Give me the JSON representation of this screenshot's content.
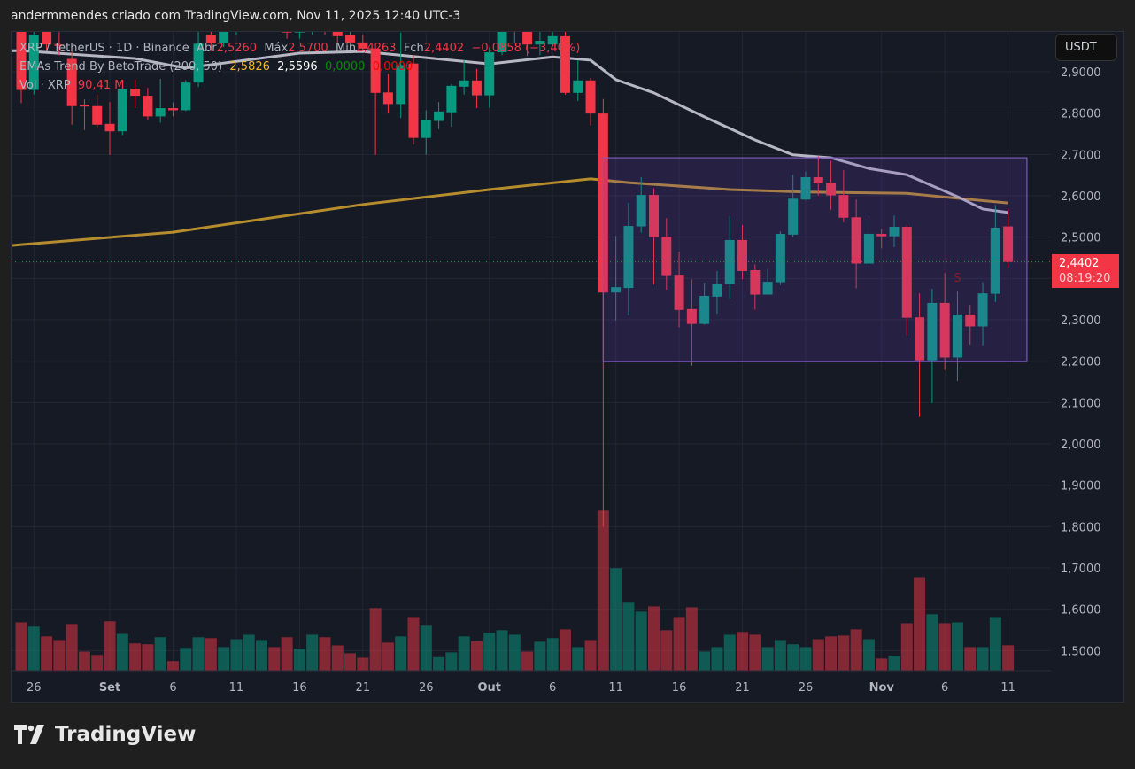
{
  "header": {
    "attribution": "andermmendes criado com TradingView.com, Nov 11, 2025 12:40 UTC-3"
  },
  "legend": {
    "symbol": "XRP / TetherUS · 1D · Binance",
    "open_label": "Abr",
    "open": "2,5260",
    "high_label": "Máx",
    "high": "2,5700",
    "low_label": "Mín",
    "low": "2,4263",
    "close_label": "Fch",
    "close": "2,4402",
    "change": "−0,0858 (−3,40%)",
    "indicator": "EMAs Trend By BetoTrade (200, 50)",
    "ema200": "2,5826",
    "ema50": "2,5596",
    "ind_v3": "0,0000",
    "ind_v4": "0,0000",
    "volume_label": "Vol · XRP",
    "volume": "90,41 M"
  },
  "price_axis": {
    "currency_button": "USDT",
    "ticks": [
      "2,9000",
      "2,8000",
      "2,7000",
      "2,6000",
      "2,5000",
      "2,3000",
      "2,2000",
      "2,1000",
      "2,0000",
      "1,9000",
      "1,8000",
      "1,7000",
      "1,6000",
      "1,5000"
    ],
    "current_price": "2,4402",
    "countdown": "08:19:20"
  },
  "time_axis": {
    "labels": [
      {
        "text": "26",
        "date": "2025-08-26"
      },
      {
        "text": "Set",
        "date": "2025-09-01"
      },
      {
        "text": "6",
        "date": "2025-09-06"
      },
      {
        "text": "11",
        "date": "2025-09-11"
      },
      {
        "text": "16",
        "date": "2025-09-16"
      },
      {
        "text": "21",
        "date": "2025-09-21"
      },
      {
        "text": "26",
        "date": "2025-09-26"
      },
      {
        "text": "Out",
        "date": "2025-10-01"
      },
      {
        "text": "6",
        "date": "2025-10-06"
      },
      {
        "text": "11",
        "date": "2025-10-11"
      },
      {
        "text": "16",
        "date": "2025-10-16"
      },
      {
        "text": "21",
        "date": "2025-10-21"
      },
      {
        "text": "26",
        "date": "2025-10-26"
      },
      {
        "text": "Nov",
        "date": "2025-11-01"
      },
      {
        "text": "6",
        "date": "2025-11-06"
      },
      {
        "text": "11",
        "date": "2025-11-11"
      }
    ]
  },
  "colors": {
    "up": "#089981",
    "down": "#f23645",
    "ema200": "#c8992f",
    "ema50": "#c9c9d6",
    "box": "#7e57c2",
    "background": "#161a25"
  },
  "chart_data": {
    "type": "candlestick",
    "symbol": "XRP/USDT",
    "interval": "1D",
    "ylim": [
      1.45,
      3.0
    ],
    "grid": true,
    "columns": [
      "date",
      "open",
      "high",
      "low",
      "close",
      "volume_M"
    ],
    "candles": [
      [
        "2025-08-25",
        3.02,
        3.05,
        2.824,
        2.856,
        172
      ],
      [
        "2025-08-26",
        2.856,
        3.02,
        2.845,
        2.99,
        157
      ],
      [
        "2025-08-27",
        2.998,
        3.01,
        2.95,
        2.966,
        122
      ],
      [
        "2025-08-28",
        2.966,
        2.998,
        2.94,
        2.964,
        109
      ],
      [
        "2025-08-29",
        2.931,
        2.95,
        2.772,
        2.817,
        166
      ],
      [
        "2025-08-30",
        2.82,
        2.833,
        2.759,
        2.816,
        68
      ],
      [
        "2025-08-31",
        2.817,
        2.845,
        2.765,
        2.772,
        56
      ],
      [
        "2025-09-01",
        2.774,
        2.827,
        2.699,
        2.756,
        176
      ],
      [
        "2025-09-02",
        2.756,
        2.862,
        2.747,
        2.859,
        131
      ],
      [
        "2025-09-03",
        2.859,
        2.881,
        2.812,
        2.842,
        97
      ],
      [
        "2025-09-04",
        2.842,
        2.861,
        2.783,
        2.792,
        94
      ],
      [
        "2025-09-05",
        2.792,
        2.883,
        2.777,
        2.812,
        119
      ],
      [
        "2025-09-06",
        2.812,
        2.826,
        2.792,
        2.807,
        34
      ],
      [
        "2025-09-07",
        2.807,
        2.88,
        2.805,
        2.874,
        81
      ],
      [
        "2025-09-08",
        2.874,
        2.998,
        2.863,
        2.968,
        119
      ],
      [
        "2025-09-09",
        2.99,
        3.03,
        2.95,
        2.97,
        116
      ],
      [
        "2025-09-10",
        2.97,
        3.04,
        2.96,
        3.02,
        84
      ],
      [
        "2025-09-11",
        3.02,
        3.08,
        2.99,
        3.06,
        112
      ],
      [
        "2025-09-12",
        3.06,
        3.12,
        3.03,
        3.1,
        128
      ],
      [
        "2025-09-13",
        3.1,
        3.15,
        3.07,
        3.12,
        109
      ],
      [
        "2025-09-14",
        3.12,
        3.13,
        3.05,
        3.08,
        84
      ],
      [
        "2025-09-15",
        3.08,
        3.09,
        2.98,
        2.995,
        119
      ],
      [
        "2025-09-16",
        2.995,
        3.03,
        2.98,
        3.02,
        78
      ],
      [
        "2025-09-17",
        3.02,
        3.06,
        2.99,
        3.04,
        128
      ],
      [
        "2025-09-18",
        3.04,
        3.07,
        2.99,
        3.0,
        119
      ],
      [
        "2025-09-19",
        3.0,
        3.03,
        2.97,
        2.986,
        90
      ],
      [
        "2025-09-20",
        2.988,
        3.0,
        2.965,
        2.971,
        62
      ],
      [
        "2025-09-21",
        2.971,
        2.99,
        2.95,
        2.956,
        46
      ],
      [
        "2025-09-22",
        2.956,
        2.97,
        2.699,
        2.849,
        223
      ],
      [
        "2025-09-23",
        2.85,
        2.895,
        2.799,
        2.822,
        100
      ],
      [
        "2025-09-24",
        2.822,
        2.995,
        2.788,
        2.916,
        122
      ],
      [
        "2025-09-25",
        2.92,
        2.941,
        2.724,
        2.74,
        191
      ],
      [
        "2025-09-26",
        2.74,
        2.807,
        2.699,
        2.783,
        160
      ],
      [
        "2025-09-27",
        2.781,
        2.827,
        2.761,
        2.804,
        48
      ],
      [
        "2025-09-28",
        2.802,
        2.87,
        2.767,
        2.866,
        65
      ],
      [
        "2025-09-29",
        2.864,
        2.929,
        2.845,
        2.879,
        122
      ],
      [
        "2025-09-30",
        2.879,
        2.907,
        2.812,
        2.843,
        105
      ],
      [
        "2025-10-01",
        2.843,
        2.959,
        2.813,
        2.947,
        135
      ],
      [
        "2025-10-02",
        2.947,
        3.05,
        2.94,
        3.0,
        144
      ],
      [
        "2025-10-03",
        3.0,
        3.08,
        2.97,
        3.02,
        128
      ],
      [
        "2025-10-04",
        3.02,
        3.03,
        2.938,
        2.966,
        68
      ],
      [
        "2025-10-05",
        2.966,
        3.0,
        2.94,
        2.975,
        103
      ],
      [
        "2025-10-06",
        2.966,
        3.02,
        2.96,
        2.986,
        116
      ],
      [
        "2025-10-07",
        2.986,
        3.01,
        2.845,
        2.849,
        147
      ],
      [
        "2025-10-08",
        2.849,
        2.927,
        2.829,
        2.879,
        84
      ],
      [
        "2025-10-09",
        2.879,
        2.885,
        2.77,
        2.799,
        109
      ],
      [
        "2025-10-10",
        2.799,
        2.834,
        1.8,
        2.366,
        570
      ],
      [
        "2025-10-11",
        2.366,
        2.503,
        2.298,
        2.379,
        365
      ],
      [
        "2025-10-12",
        2.377,
        2.583,
        2.311,
        2.527,
        242
      ],
      [
        "2025-10-13",
        2.526,
        2.645,
        2.511,
        2.602,
        210
      ],
      [
        "2025-10-14",
        2.602,
        2.618,
        2.386,
        2.5,
        229
      ],
      [
        "2025-10-15",
        2.501,
        2.546,
        2.373,
        2.408,
        144
      ],
      [
        "2025-10-16",
        2.409,
        2.465,
        2.282,
        2.324,
        191
      ],
      [
        "2025-10-17",
        2.326,
        2.398,
        2.189,
        2.29,
        226
      ],
      [
        "2025-10-18",
        2.29,
        2.39,
        2.288,
        2.358,
        68
      ],
      [
        "2025-10-19",
        2.356,
        2.418,
        2.315,
        2.388,
        84
      ],
      [
        "2025-10-20",
        2.386,
        2.551,
        2.352,
        2.493,
        128
      ],
      [
        "2025-10-21",
        2.493,
        2.529,
        2.398,
        2.418,
        138
      ],
      [
        "2025-10-22",
        2.42,
        2.434,
        2.325,
        2.361,
        128
      ],
      [
        "2025-10-23",
        2.361,
        2.423,
        2.361,
        2.392,
        84
      ],
      [
        "2025-10-24",
        2.391,
        2.514,
        2.384,
        2.508,
        109
      ],
      [
        "2025-10-25",
        2.506,
        2.651,
        2.5,
        2.593,
        94
      ],
      [
        "2025-10-26",
        2.591,
        2.659,
        2.589,
        2.645,
        84
      ],
      [
        "2025-10-27",
        2.645,
        2.696,
        2.601,
        2.63,
        112
      ],
      [
        "2025-10-28",
        2.632,
        2.685,
        2.566,
        2.601,
        122
      ],
      [
        "2025-10-29",
        2.602,
        2.662,
        2.536,
        2.547,
        125
      ],
      [
        "2025-10-30",
        2.548,
        2.591,
        2.376,
        2.436,
        147
      ],
      [
        "2025-10-31",
        2.436,
        2.552,
        2.429,
        2.508,
        112
      ],
      [
        "2025-11-01",
        2.508,
        2.52,
        2.473,
        2.502,
        43
      ],
      [
        "2025-11-02",
        2.502,
        2.552,
        2.476,
        2.525,
        53
      ],
      [
        "2025-11-03",
        2.525,
        2.529,
        2.262,
        2.305,
        169
      ],
      [
        "2025-11-04",
        2.306,
        2.364,
        2.065,
        2.202,
        333
      ],
      [
        "2025-11-05",
        2.202,
        2.375,
        2.099,
        2.341,
        201
      ],
      [
        "2025-11-06",
        2.341,
        2.413,
        2.179,
        2.209,
        169
      ],
      [
        "2025-11-07",
        2.209,
        2.37,
        2.152,
        2.313,
        172
      ],
      [
        "2025-11-08",
        2.313,
        2.336,
        2.24,
        2.284,
        84
      ],
      [
        "2025-11-09",
        2.284,
        2.391,
        2.238,
        2.364,
        84
      ],
      [
        "2025-11-10",
        2.363,
        2.578,
        2.343,
        2.523,
        191
      ],
      [
        "2025-11-11",
        2.526,
        2.57,
        2.4263,
        2.4402,
        90.41
      ]
    ],
    "ema200": [
      [
        "2025-08-25",
        2.482
      ],
      [
        "2025-09-06",
        2.512
      ],
      [
        "2025-09-21",
        2.579
      ],
      [
        "2025-10-01",
        2.615
      ],
      [
        "2025-10-09",
        2.641
      ],
      [
        "2025-10-12",
        2.632
      ],
      [
        "2025-10-20",
        2.615
      ],
      [
        "2025-10-26",
        2.609
      ],
      [
        "2025-11-03",
        2.606
      ],
      [
        "2025-11-07",
        2.594
      ],
      [
        "2025-11-11",
        2.5826
      ]
    ],
    "ema50": [
      [
        "2025-08-25",
        2.951
      ],
      [
        "2025-09-03",
        2.932
      ],
      [
        "2025-09-07",
        2.909
      ],
      [
        "2025-09-16",
        2.945
      ],
      [
        "2025-09-21",
        2.949
      ],
      [
        "2025-10-01",
        2.919
      ],
      [
        "2025-10-06",
        2.936
      ],
      [
        "2025-10-09",
        2.928
      ],
      [
        "2025-10-11",
        2.881
      ],
      [
        "2025-10-14",
        2.849
      ],
      [
        "2025-10-18",
        2.791
      ],
      [
        "2025-10-22",
        2.735
      ],
      [
        "2025-10-25",
        2.699
      ],
      [
        "2025-10-28",
        2.692
      ],
      [
        "2025-10-31",
        2.666
      ],
      [
        "2025-11-03",
        2.651
      ],
      [
        "2025-11-07",
        2.598
      ],
      [
        "2025-11-09",
        2.568
      ],
      [
        "2025-11-11",
        2.5596
      ]
    ],
    "range_box": {
      "start": "2025-10-10",
      "end": "2025-11-12",
      "top": 2.692,
      "bottom": 2.199
    },
    "signal_marker": {
      "date": "2025-11-07",
      "price": 2.403,
      "text": "S",
      "color": "#8b1a2b"
    }
  }
}
